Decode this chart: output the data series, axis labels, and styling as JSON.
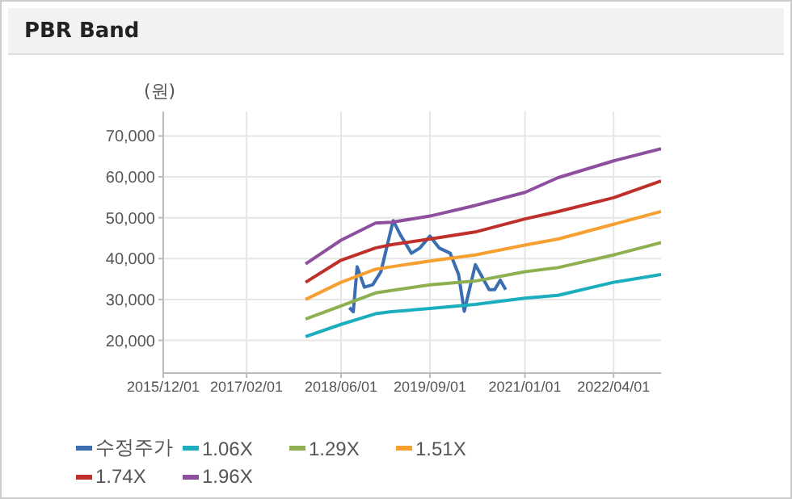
{
  "chart_data": {
    "type": "line",
    "title": "PBR Band",
    "ylabel": "(원)",
    "x": [
      "2017-12-01",
      "2018-06-01",
      "2018-11-25",
      "2019-02-15",
      "2019-09-01",
      "2020-04-20",
      "2021-01-01",
      "2021-06-20",
      "2022-04-01",
      "2022-12-01"
    ],
    "series": [
      {
        "name": "수정주가",
        "color": "#3a6eb0",
        "x": [
          "2018-07-14",
          "2018-08-03",
          "2018-08-23",
          "2018-09-29",
          "2018-11-11",
          "2018-12-23",
          "2019-02-24",
          "2019-04-02",
          "2019-05-29",
          "2019-07-11",
          "2019-09-01",
          "2019-10-18",
          "2019-12-14",
          "2020-01-26",
          "2020-02-24",
          "2020-04-21",
          "2020-07-01",
          "2020-07-29",
          "2020-08-27",
          "2020-09-24"
        ],
        "values": [
          28000,
          27000,
          38000,
          33000,
          33600,
          36800,
          49300,
          45800,
          41300,
          42600,
          45500,
          42600,
          41300,
          36100,
          27100,
          38500,
          32400,
          32400,
          34700,
          32400
        ]
      },
      {
        "name": "1.06X",
        "color": "#1aaebf",
        "values": [
          20900,
          23900,
          26500,
          27000,
          27800,
          28800,
          30300,
          31000,
          34200,
          36100
        ]
      },
      {
        "name": "1.29X",
        "color": "#8fb050",
        "values": [
          25200,
          28400,
          31600,
          32200,
          33600,
          34500,
          36800,
          37800,
          40900,
          43900
        ]
      },
      {
        "name": "1.51X",
        "color": "#f5a030",
        "values": [
          30000,
          34200,
          37400,
          38000,
          39400,
          40900,
          43300,
          44800,
          48400,
          51500
        ]
      },
      {
        "name": "1.74X",
        "color": "#c0302a",
        "values": [
          34200,
          39600,
          42600,
          43400,
          44800,
          46500,
          49700,
          51500,
          54900,
          59000
        ]
      },
      {
        "name": "1.96X",
        "color": "#8e4f9e",
        "values": [
          38700,
          44500,
          48700,
          48900,
          50400,
          53000,
          56200,
          59800,
          63900,
          66900
        ]
      }
    ],
    "xlim": [
      "2015-12-01",
      "2022-12-01"
    ],
    "xticks": [
      {
        "value": "2015-12-01",
        "label": "2015/12/01"
      },
      {
        "value": "2017-02-01",
        "label": "2017/02/01"
      },
      {
        "value": "2018-06-01",
        "label": "2018/06/01"
      },
      {
        "value": "2019-09-01",
        "label": "2019/09/01"
      },
      {
        "value": "2021-01-01",
        "label": "2021/01/01"
      },
      {
        "value": "2022-04-01",
        "label": "2022/04/01"
      }
    ],
    "ylim": [
      12000,
      76000
    ],
    "yticks": [
      {
        "value": 20000,
        "label": "20,000"
      },
      {
        "value": 30000,
        "label": "30,000"
      },
      {
        "value": 40000,
        "label": "40,000"
      },
      {
        "value": 50000,
        "label": "50,000"
      },
      {
        "value": 60000,
        "label": "60,000"
      },
      {
        "value": 70000,
        "label": "70,000"
      }
    ],
    "grid": true,
    "legend": "bottom",
    "marker": "none",
    "line_style": "solid"
  }
}
